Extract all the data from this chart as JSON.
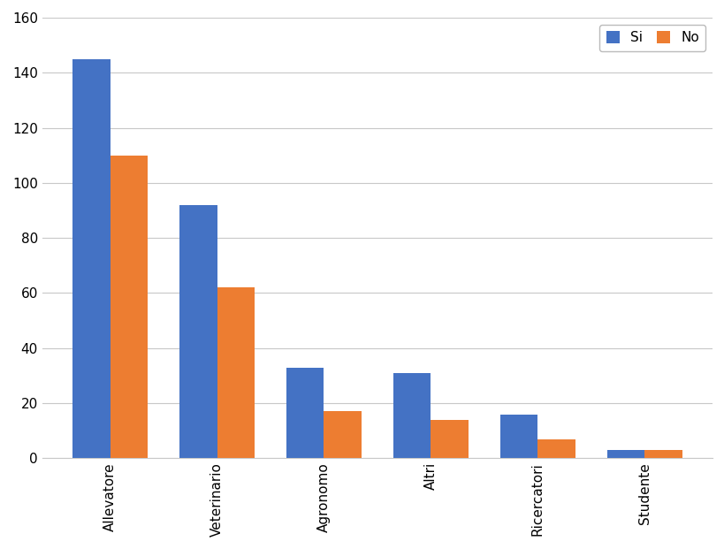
{
  "categories": [
    "Allevatore",
    "Veterinario",
    "Agronomo",
    "Altri",
    "Ricercatori",
    "Studente"
  ],
  "si_values": [
    145,
    92,
    33,
    31,
    16,
    3
  ],
  "no_values": [
    110,
    62,
    17,
    14,
    7,
    3
  ],
  "si_color": "#4472C4",
  "no_color": "#ED7D31",
  "legend_labels": [
    "Si",
    "No"
  ],
  "ylim": [
    0,
    160
  ],
  "yticks": [
    0,
    20,
    40,
    60,
    80,
    100,
    120,
    140,
    160
  ],
  "bar_width": 0.35,
  "background_color": "#ffffff",
  "grid_color": "#c8c8c8",
  "legend_position": "upper right"
}
